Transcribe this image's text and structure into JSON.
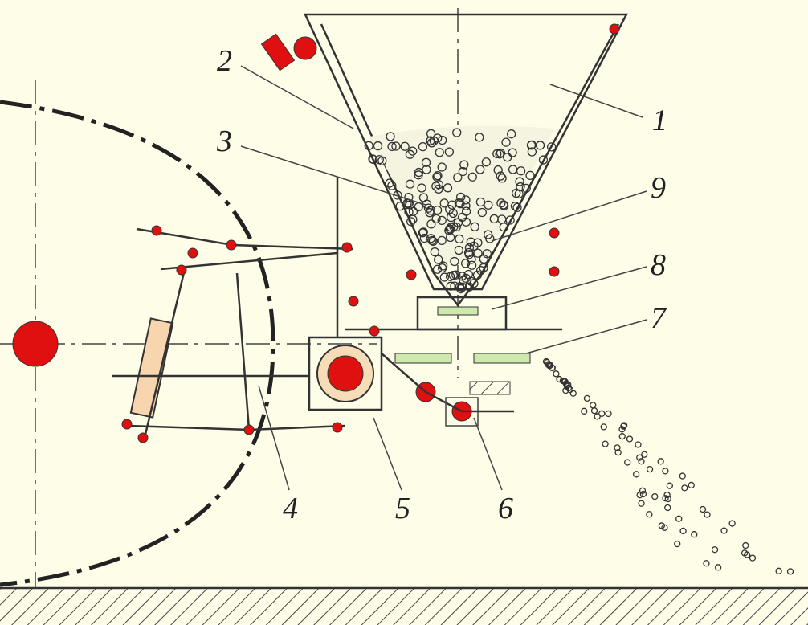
{
  "labels": [
    {
      "label": "1"
    },
    {
      "label": "2"
    },
    {
      "label": "3"
    },
    {
      "label": "4"
    },
    {
      "label": "5"
    },
    {
      "label": "6"
    },
    {
      "label": "7"
    },
    {
      "label": "8"
    },
    {
      "label": "9"
    }
  ]
}
